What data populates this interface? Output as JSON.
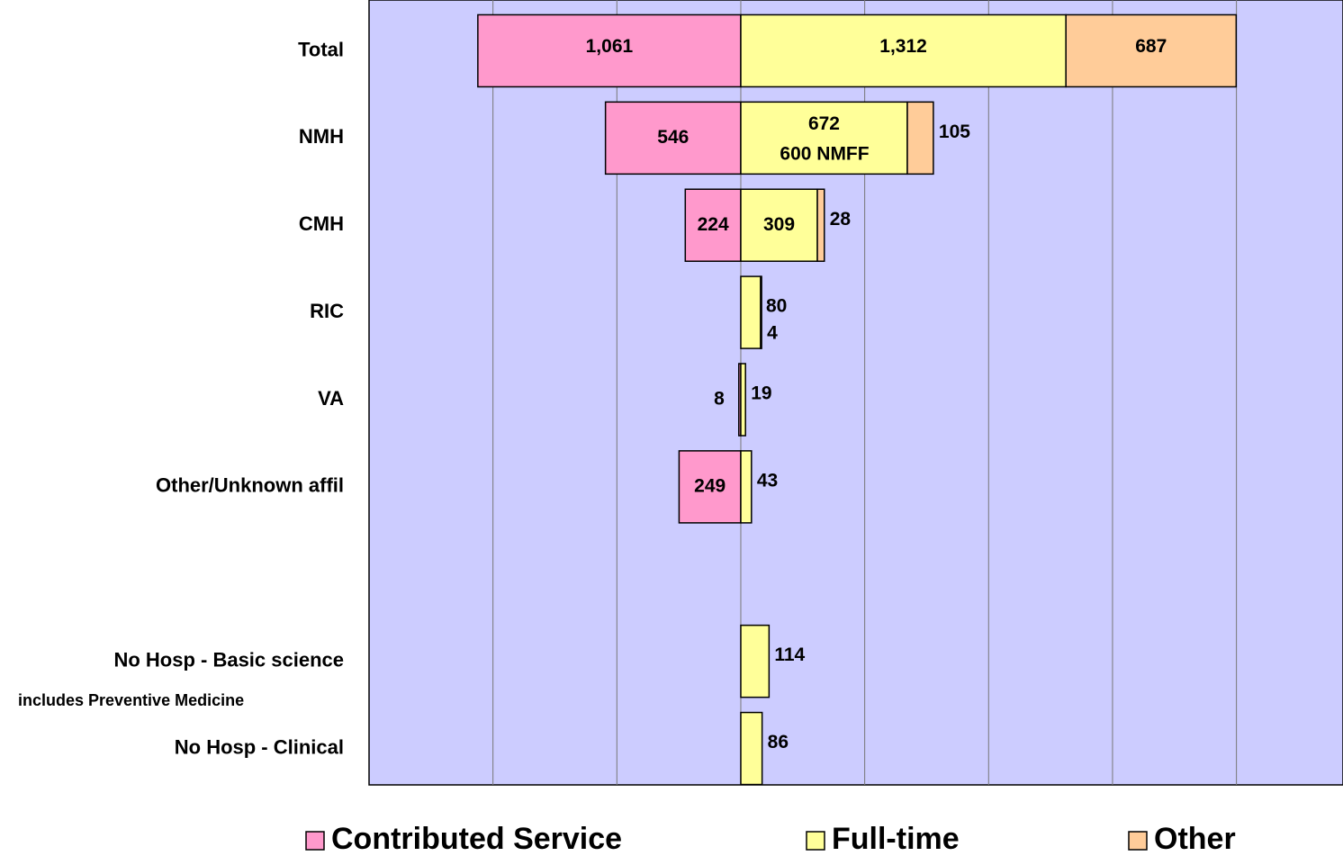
{
  "chart_data": {
    "type": "diverging-bar",
    "categories": [
      "Total",
      "NMH",
      "CMH",
      "RIC",
      "VA",
      "Other/Unknown affil",
      null,
      "No Hosp - Basic science",
      "No Hosp - Clinical"
    ],
    "series": [
      {
        "name": "Contributed Service",
        "color": "#ff99cc",
        "side": "left",
        "values": [
          1061,
          546,
          224,
          null,
          8,
          249,
          null,
          null,
          null
        ],
        "value_labels": [
          "1,061",
          "546",
          "224",
          null,
          "8",
          "249",
          null,
          null,
          null
        ]
      },
      {
        "name": "Full-time",
        "color": "#ffff99",
        "side": "right",
        "values": [
          1312,
          672,
          309,
          80,
          19,
          43,
          null,
          114,
          86
        ],
        "value_labels": [
          "1,312",
          "672",
          "309",
          "80",
          "19",
          "43",
          null,
          "114",
          "86"
        ]
      },
      {
        "name": "Other",
        "color": "#ffcc99",
        "side": "right",
        "values": [
          687,
          105,
          28,
          4,
          null,
          null,
          null,
          null,
          null
        ],
        "value_labels": [
          "687",
          "105",
          "28",
          "4",
          null,
          null,
          null,
          null,
          null
        ]
      }
    ],
    "annotations": [
      "600 NMFF",
      "includes Preventive Medicine"
    ],
    "xlim": [
      -1500,
      2430
    ],
    "xgrid": [
      -1000,
      -500,
      0,
      500,
      1000,
      1500,
      2000
    ],
    "legend": "bottom"
  }
}
